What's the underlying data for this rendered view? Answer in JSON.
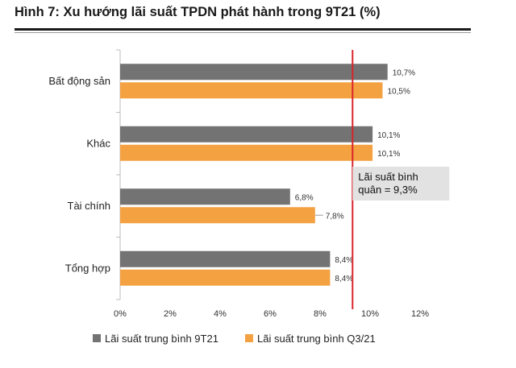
{
  "title": "Hình 7: Xu hướng lãi suất TPDN phát hành trong 9T21 (%)",
  "colors": {
    "series1": "#737373",
    "series2": "#f4a142",
    "refline": "#d9242b",
    "callout_bg": "#e2e2e2",
    "leader": "#9a9a9a"
  },
  "chart_data": {
    "type": "bar",
    "orientation": "horizontal",
    "categories": [
      "Bất động sản",
      "Khác",
      "Tài chính",
      "Tổng hợp"
    ],
    "series": [
      {
        "name": "Lãi suất trung bình 9T21",
        "values": [
          10.7,
          10.1,
          6.8,
          8.4
        ],
        "labels": [
          "10,7%",
          "10,1%",
          "6,8%",
          "8,4%"
        ]
      },
      {
        "name": "Lãi suất trung bình Q3/21",
        "values": [
          10.5,
          10.1,
          7.8,
          8.4
        ],
        "labels": [
          "10,5%",
          "10,1%",
          "7,8%",
          "8,4%"
        ]
      }
    ],
    "xlim": [
      0,
      12
    ],
    "xticks": [
      0,
      2,
      4,
      6,
      8,
      10,
      12
    ],
    "xtick_labels": [
      "0%",
      "2%",
      "4%",
      "6%",
      "8%",
      "10%",
      "12%"
    ],
    "reference_line": {
      "value": 9.3,
      "label_lines": [
        "Lãi suất bình",
        "quân = 9,3%"
      ]
    },
    "legend_position": "bottom-left",
    "grid": false
  }
}
